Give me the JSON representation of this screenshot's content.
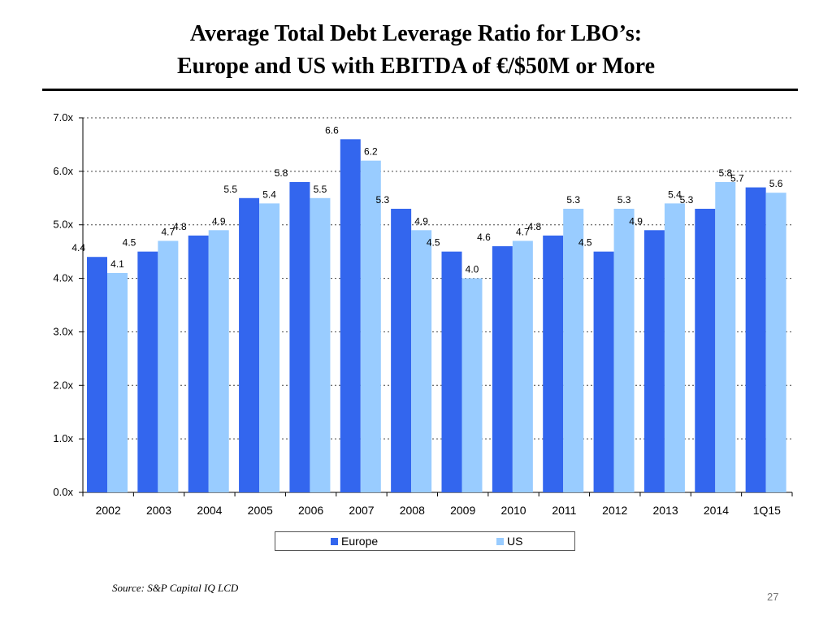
{
  "slide": {
    "title_line1": "Average Total Debt Leverage Ratio for LBO’s:",
    "title_line2": "Europe and US with EBITDA of €/$50M or More",
    "source": "Source: S&P Capital IQ LCD",
    "page_number": "27"
  },
  "chart_data": {
    "type": "bar",
    "title": "Average Total Debt Leverage Ratio for LBO’s: Europe and US with EBITDA of €/$50M or More",
    "xlabel": "",
    "ylabel": "",
    "categories": [
      "2002",
      "2003",
      "2004",
      "2005",
      "2006",
      "2007",
      "2008",
      "2009",
      "2010",
      "2011",
      "2012",
      "2013",
      "2014",
      "1Q15"
    ],
    "series": [
      {
        "name": "Europe",
        "color": "#3366ee",
        "values": [
          4.4,
          4.5,
          4.8,
          5.5,
          5.8,
          6.6,
          5.3,
          4.5,
          4.6,
          4.8,
          4.5,
          4.9,
          5.3,
          5.7
        ]
      },
      {
        "name": "US",
        "color": "#99ccff",
        "values": [
          4.1,
          4.7,
          4.9,
          5.4,
          5.5,
          6.2,
          4.9,
          4.0,
          4.7,
          5.3,
          5.3,
          5.4,
          5.8,
          5.6
        ]
      }
    ],
    "ylim": [
      0,
      7
    ],
    "yticks": [
      0,
      1,
      2,
      3,
      4,
      5,
      6,
      7
    ],
    "ytick_labels": [
      "0.0x",
      "1.0x",
      "2.0x",
      "3.0x",
      "4.0x",
      "5.0x",
      "6.0x",
      "7.0x"
    ],
    "grid": true,
    "legend_position": "bottom"
  }
}
